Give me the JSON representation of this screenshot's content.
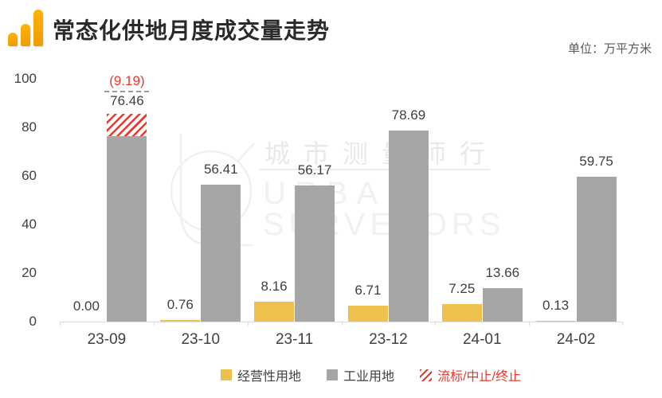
{
  "header": {
    "title": "常态化供地月度成交量走势",
    "unit_label": "单位：万平方米"
  },
  "watermark": {
    "cn": "城市测量师行",
    "en_line1": "URBAN",
    "en_line2": "SURVEYORS"
  },
  "chart_data": {
    "type": "bar",
    "title": "常态化供地月度成交量走势",
    "unit": "万平方米",
    "categories": [
      "23-09",
      "23-10",
      "23-11",
      "23-12",
      "24-01",
      "24-02"
    ],
    "series": [
      {
        "name": "经营性用地",
        "color": "#EFC24D",
        "values": [
          0.0,
          0.76,
          8.16,
          6.71,
          7.25,
          0.13
        ]
      },
      {
        "name": "工业用地",
        "color": "#A6A6A6",
        "values": [
          76.46,
          56.41,
          56.17,
          78.69,
          13.66,
          59.75
        ]
      },
      {
        "name": "流标/中止/终止",
        "color": "#E8392F",
        "pattern": "diagonal-hatch",
        "values": [
          9.19,
          null,
          null,
          null,
          null,
          null
        ]
      }
    ],
    "annotation": {
      "category": "23-09",
      "series": "流标/中止/终止",
      "label": "(9.19)",
      "value": 9.19,
      "style": "red-text-above-gray-dashed-line"
    },
    "y_axis": {
      "min": 0,
      "max": 100,
      "ticks": [
        0,
        20,
        40,
        60,
        80,
        100
      ]
    },
    "grid": false,
    "legend_position": "bottom"
  },
  "legend": {
    "items": [
      {
        "label": "经营性用地",
        "swatch": "yellow"
      },
      {
        "label": "工业用地",
        "swatch": "gray"
      },
      {
        "label": "流标/中止/终止",
        "swatch": "red-hatch"
      }
    ]
  },
  "colors": {
    "commercial_bar": "#EFC24D",
    "industrial_bar": "#A6A6A6",
    "failed_red": "#E8392F",
    "axis_line": "#DBDBDB",
    "value_label_text": "#3F3F3F",
    "title_text": "#2A2A2A",
    "unit_text": "#595959",
    "watermark_gray": "#ECECEC",
    "icon_orange": "#F5A300"
  }
}
